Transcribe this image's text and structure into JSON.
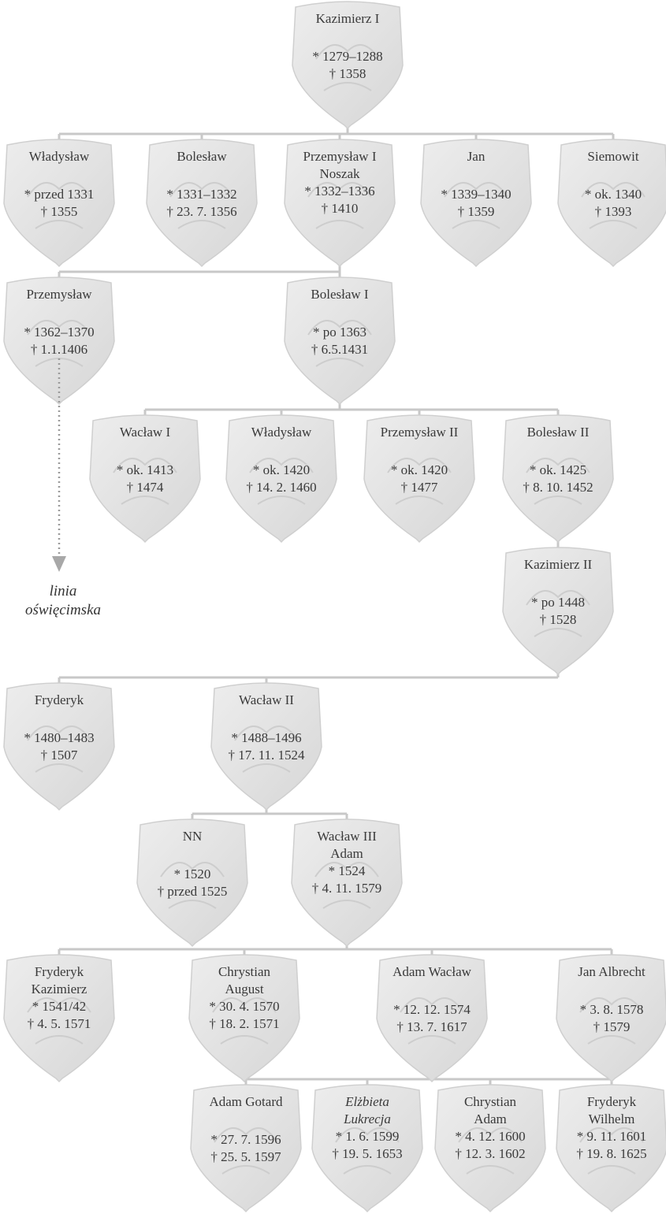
{
  "colors": {
    "shield": "#e4e4e4",
    "shield_edge": "#cfcfcf",
    "connector": "#c8c8c8",
    "text": "#3a3a3a"
  },
  "people": [
    {
      "id": "kazimierz-1",
      "name": [
        "Kazimierz I"
      ],
      "birth": "* 1279–1288",
      "death": "† 1358"
    },
    {
      "id": "wladyslaw-1",
      "name": [
        "Władysław"
      ],
      "birth": "* przed 1331",
      "death": "† 1355"
    },
    {
      "id": "boleslaw-1",
      "name": [
        "Bolesław"
      ],
      "birth": "* 1331–1332",
      "death": "† 23. 7. 1356"
    },
    {
      "id": "przemyslaw-noszak",
      "name": [
        "Przemysław I",
        "Noszak"
      ],
      "birth": "* 1332–1336",
      "death": "† 1410"
    },
    {
      "id": "jan-1",
      "name": [
        "Jan"
      ],
      "birth": "* 1339–1340",
      "death": "† 1359"
    },
    {
      "id": "siemowit",
      "name": [
        "Siemowit"
      ],
      "birth": "* ok. 1340",
      "death": "† 1393"
    },
    {
      "id": "przemyslaw-2",
      "name": [
        "Przemysław"
      ],
      "birth": "* 1362–1370",
      "death": "† 1.1.1406"
    },
    {
      "id": "boleslaw-i",
      "name": [
        "Bolesław I"
      ],
      "birth": "* po 1363",
      "death": "† 6.5.1431"
    },
    {
      "id": "waclaw-i",
      "name": [
        "Wacław I"
      ],
      "birth": "* ok. 1413",
      "death": "† 1474"
    },
    {
      "id": "wladyslaw-2",
      "name": [
        "Władysław"
      ],
      "birth": "* ok. 1420",
      "death": "† 14. 2. 1460"
    },
    {
      "id": "przemyslaw-ii",
      "name": [
        "Przemysław II"
      ],
      "birth": "* ok. 1420",
      "death": "† 1477"
    },
    {
      "id": "boleslaw-ii",
      "name": [
        "Bolesław II"
      ],
      "birth": "* ok. 1425",
      "death": "† 8. 10. 1452"
    },
    {
      "id": "kazimierz-ii",
      "name": [
        "Kazimierz II"
      ],
      "birth": "* po 1448",
      "death": "† 1528"
    },
    {
      "id": "fryderyk-1",
      "name": [
        "Fryderyk"
      ],
      "birth": "* 1480–1483",
      "death": "† 1507"
    },
    {
      "id": "waclaw-ii",
      "name": [
        "Wacław II"
      ],
      "birth": "* 1488–1496",
      "death": "† 17. 11. 1524"
    },
    {
      "id": "nn",
      "name": [
        "NN"
      ],
      "birth": "* 1520",
      "death": "† przed 1525"
    },
    {
      "id": "waclaw-iii-adam",
      "name": [
        "Wacław III",
        "Adam"
      ],
      "birth": "* 1524",
      "death": "† 4. 11. 1579"
    },
    {
      "id": "fryderyk-kazimierz",
      "name": [
        "Fryderyk",
        "Kazimierz"
      ],
      "birth": "* 1541/42",
      "death": "† 4. 5. 1571"
    },
    {
      "id": "chrystian-august",
      "name": [
        "Chrystian",
        "August"
      ],
      "birth": "* 30. 4. 1570",
      "death": "† 18. 2. 1571"
    },
    {
      "id": "adam-waclaw",
      "name": [
        "Adam Wacław"
      ],
      "birth": "* 12. 12. 1574",
      "death": "† 13. 7. 1617"
    },
    {
      "id": "jan-albrecht",
      "name": [
        "Jan Albrecht"
      ],
      "birth": "* 3. 8. 1578",
      "death": "† 1579"
    },
    {
      "id": "adam-gotard",
      "name": [
        "Adam Gotard"
      ],
      "birth": "* 27. 7. 1596",
      "death": "† 25. 5. 1597"
    },
    {
      "id": "elzbieta-lukrecja",
      "name": [
        "Elżbieta",
        "Lukrecja"
      ],
      "birth": "* 1. 6. 1599",
      "death": "† 19. 5. 1653",
      "italic_name": true
    },
    {
      "id": "chrystian-adam",
      "name": [
        "Chrystian",
        "Adam"
      ],
      "birth": "* 4. 12. 1600",
      "death": "† 12. 3. 1602"
    },
    {
      "id": "fryderyk-wilhelm",
      "name": [
        "Fryderyk",
        "Wilhelm"
      ],
      "birth": "* 9. 11. 1601",
      "death": "† 19. 8. 1625"
    }
  ],
  "note": {
    "lines": [
      "linia",
      "oświęcimska"
    ]
  }
}
